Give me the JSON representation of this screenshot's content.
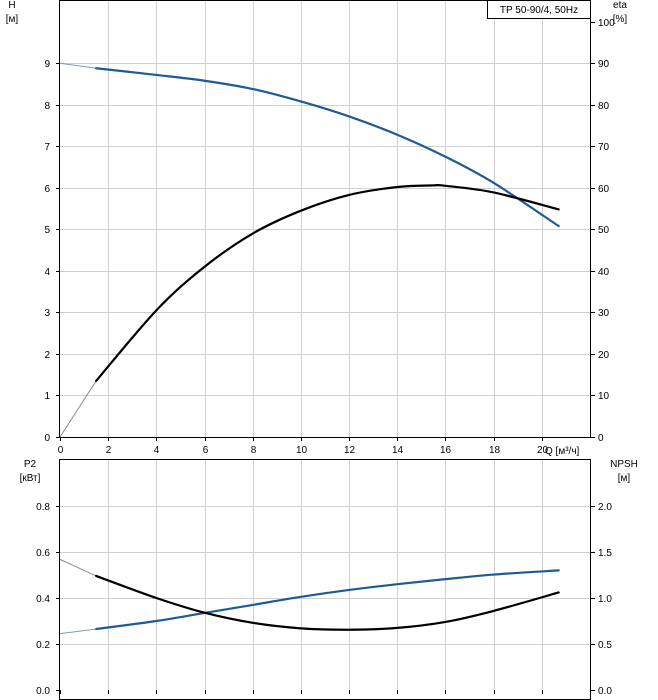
{
  "chart_data": [
    {
      "type": "line",
      "legend": "TP 50-90/4, 50Hz",
      "xlabel": "Q [м³/ч]",
      "ylabel_left": [
        "H",
        "[м]"
      ],
      "ylabel_right": [
        "eta",
        "[%]"
      ],
      "xlim": [
        0,
        22
      ],
      "ylim_left": [
        0,
        10.5
      ],
      "ylim_right": [
        0,
        105
      ],
      "x_ticks": [
        0,
        2,
        4,
        6,
        8,
        10,
        12,
        14,
        16,
        18,
        20
      ],
      "x_tick_labels": [
        "0",
        "2",
        "4",
        "6",
        "8",
        "10",
        "12",
        "14",
        "16",
        "18",
        "20"
      ],
      "y_ticks_left": [
        0,
        1,
        2,
        3,
        4,
        5,
        6,
        7,
        8,
        9
      ],
      "y_tick_labels_left": [
        "0",
        "1",
        "2",
        "3",
        "4",
        "5",
        "6",
        "7",
        "8",
        "9"
      ],
      "y_ticks_right": [
        0,
        10,
        20,
        30,
        40,
        50,
        60,
        70,
        80,
        90,
        100
      ],
      "y_tick_labels_right": [
        "0",
        "10",
        "20",
        "30",
        "40",
        "50",
        "60",
        "70",
        "80",
        "90",
        "100"
      ],
      "grid": true,
      "series": [
        {
          "axis": "left",
          "color": "#1f5a96",
          "ext_color": "#7a9cc4",
          "valid_from": 1.5,
          "x": [
            0,
            1.5,
            4,
            6,
            8,
            10,
            12,
            14,
            16,
            18,
            20.7
          ],
          "y": [
            9.0,
            8.88,
            8.72,
            8.58,
            8.38,
            8.08,
            7.72,
            7.28,
            6.75,
            6.12,
            5.08
          ]
        },
        {
          "axis": "right",
          "color": "#000000",
          "ext_color": "#8a8a8a",
          "valid_from": 1.5,
          "x": [
            0,
            1.5,
            4,
            6,
            8,
            10,
            12,
            14,
            15.5,
            16,
            18,
            20.7
          ],
          "y": [
            0,
            13.5,
            30.5,
            41,
            49,
            54.5,
            58.3,
            60.2,
            60.6,
            60.5,
            58.9,
            54.8
          ]
        }
      ]
    },
    {
      "type": "line",
      "xlabel": "",
      "ylabel_left": [
        "P2",
        "[кВт]"
      ],
      "ylabel_right": [
        "NPSH",
        "[м]"
      ],
      "xlim": [
        0,
        22
      ],
      "ylim_left": [
        0,
        1.0
      ],
      "ylim_right": [
        0,
        2.5
      ],
      "x_ticks": [
        0,
        2,
        4,
        6,
        8,
        10,
        12,
        14,
        16,
        18,
        20
      ],
      "y_ticks_left": [
        0,
        0.2,
        0.4,
        0.6,
        0.8
      ],
      "y_tick_labels_left": [
        "0.0",
        "0.2",
        "0.4",
        "0.6",
        "0.8"
      ],
      "y_ticks_right": [
        0,
        0.5,
        1.0,
        1.5,
        2.0
      ],
      "y_tick_labels_right": [
        "0.0",
        "0.5",
        "1.0",
        "1.5",
        "2.0"
      ],
      "grid": true,
      "series": [
        {
          "axis": "left",
          "color": "#1f5a96",
          "ext_color": "#7a9cc4",
          "valid_from": 1.5,
          "x": [
            0,
            1.5,
            4,
            6,
            8,
            10,
            12,
            14,
            16,
            18,
            20.7
          ],
          "y": [
            0.245,
            0.265,
            0.3,
            0.335,
            0.37,
            0.405,
            0.435,
            0.46,
            0.482,
            0.502,
            0.52
          ]
        },
        {
          "axis": "right",
          "color": "#000000",
          "ext_color": "#8a8a8a",
          "valid_from": 1.5,
          "x": [
            0,
            1.5,
            4,
            6,
            8,
            10,
            12,
            14,
            16,
            18,
            20.7
          ],
          "y": [
            1.42,
            1.24,
            1.0,
            0.84,
            0.73,
            0.67,
            0.655,
            0.675,
            0.74,
            0.86,
            1.06
          ]
        }
      ]
    }
  ]
}
